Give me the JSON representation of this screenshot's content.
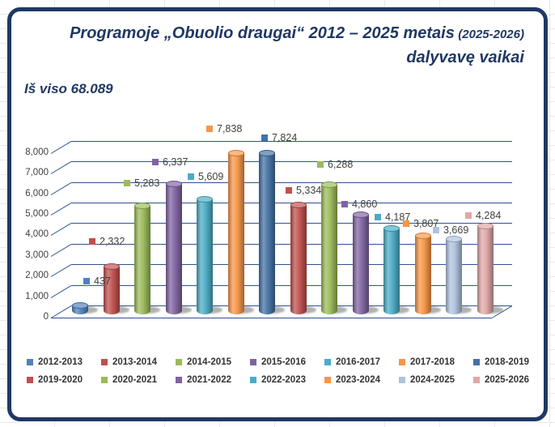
{
  "title": {
    "line1_main": "Programoje „Obuolio draugai“ 2012 – 2025 metais",
    "line1_small": "(2025-2026)",
    "line2": "dalyvavę vaikai"
  },
  "total_label": "Iš viso 68.089",
  "colors": {
    "frame": "#1F3864",
    "title_text": "#1F3864",
    "grid": "#2E5290",
    "label_text": "#3F3F3F"
  },
  "chart_data": {
    "type": "bar",
    "subtype": "3d-cylinder",
    "title": "Programoje „Obuolio draugai“ 2012 – 2025 metais (2025-2026) dalyvavę vaikai",
    "total": 68089,
    "categories": [
      "2012-2013",
      "2013-2014",
      "2014-2015",
      "2015-2016",
      "2016-2017",
      "2017-2018",
      "2018-2019",
      "2019-2020",
      "2020-2021",
      "2021-2022",
      "2022-2023",
      "2023-2024",
      "2024-2025",
      "2025-2026"
    ],
    "values": [
      437,
      2332,
      5283,
      6337,
      5609,
      7838,
      7824,
      5334,
      6288,
      4860,
      4187,
      3807,
      3669,
      4284
    ],
    "value_labels": [
      "437",
      "2,332",
      "5,283",
      "6,337",
      "5,609",
      "7,838",
      "7,824",
      "5,334",
      "6,288",
      "4,860",
      "4,187",
      "3,807",
      "3,669",
      "4,284"
    ],
    "series_colors": [
      "#4F81BD",
      "#C0504D",
      "#9BBB59",
      "#8064A2",
      "#4BACC6",
      "#F79646",
      "#4472A4",
      "#C0504D",
      "#9BBB59",
      "#8064A2",
      "#4BACC6",
      "#F79646",
      "#AFC3DF",
      "#DFA7A6"
    ],
    "ylim": [
      0,
      8000
    ],
    "ytick_labels": [
      "0",
      "1,000",
      "2,000",
      "3,000",
      "4,000",
      "5,000",
      "6,000",
      "7,000",
      "8,000"
    ],
    "grid": true,
    "legend_position": "bottom"
  }
}
